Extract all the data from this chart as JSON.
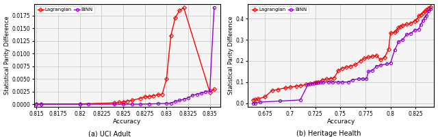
{
  "left": {
    "binn_x": [
      0.815,
      0.8155,
      0.82,
      0.821,
      0.824,
      0.825,
      0.826,
      0.827,
      0.828,
      0.829,
      0.83,
      0.8305,
      0.831,
      0.8315,
      0.832,
      0.8325,
      0.833,
      0.8335,
      0.834,
      0.8345,
      0.835,
      0.8355
    ],
    "binn_y": [
      5e-05,
      5e-05,
      5e-05,
      5e-05,
      5e-05,
      5e-05,
      5e-05,
      5e-05,
      0.0001,
      0.00015,
      0.0002,
      0.00025,
      0.0006,
      0.0008,
      0.001,
      0.0013,
      0.0018,
      0.002,
      0.0022,
      0.0025,
      0.0027,
      0.019
    ],
    "lagr_x": [
      0.815,
      0.8155,
      0.82,
      0.824,
      0.8245,
      0.825,
      0.8255,
      0.826,
      0.827,
      0.8275,
      0.828,
      0.8285,
      0.829,
      0.8295,
      0.83,
      0.8305,
      0.831,
      0.8315,
      0.832,
      0.835,
      0.8355
    ],
    "lagr_y": [
      0.0001,
      0.0001,
      0.0001,
      0.0003,
      0.0004,
      0.0005,
      0.00065,
      0.0008,
      0.0012,
      0.0015,
      0.0016,
      0.0017,
      0.0019,
      0.002,
      0.005,
      0.0135,
      0.017,
      0.0185,
      0.019,
      0.0024,
      0.003
    ],
    "xlabel": "Accuracy",
    "ylabel": "Statistical Parity Difference",
    "title": "(a) UCI Adult",
    "xlim": [
      0.8147,
      0.8362
    ],
    "ylim": [
      -0.0005,
      0.0198
    ],
    "xticks": [
      0.815,
      0.8175,
      0.82,
      0.8225,
      0.825,
      0.8275,
      0.83,
      0.8325,
      0.835
    ],
    "yticks": [
      0.0,
      0.0025,
      0.005,
      0.0075,
      0.01,
      0.0125,
      0.015,
      0.0175
    ]
  },
  "right": {
    "binn_x": [
      0.663,
      0.665,
      0.67,
      0.69,
      0.71,
      0.718,
      0.722,
      0.726,
      0.73,
      0.733,
      0.738,
      0.742,
      0.748,
      0.752,
      0.758,
      0.762,
      0.768,
      0.772,
      0.776,
      0.778,
      0.782,
      0.786,
      0.79,
      0.796,
      0.8,
      0.804,
      0.808,
      0.812,
      0.816,
      0.82,
      0.824,
      0.828,
      0.83,
      0.832,
      0.834,
      0.836,
      0.838,
      0.84
    ],
    "binn_y": [
      0.0,
      0.0,
      0.005,
      0.01,
      0.015,
      0.09,
      0.093,
      0.095,
      0.098,
      0.1,
      0.1,
      0.1,
      0.1,
      0.1,
      0.1,
      0.11,
      0.115,
      0.115,
      0.115,
      0.15,
      0.155,
      0.175,
      0.18,
      0.185,
      0.19,
      0.25,
      0.29,
      0.3,
      0.325,
      0.33,
      0.345,
      0.35,
      0.37,
      0.39,
      0.405,
      0.415,
      0.435,
      0.445
    ],
    "lagr_x": [
      0.663,
      0.665,
      0.668,
      0.675,
      0.682,
      0.688,
      0.695,
      0.7,
      0.706,
      0.71,
      0.716,
      0.72,
      0.724,
      0.726,
      0.728,
      0.732,
      0.736,
      0.74,
      0.744,
      0.748,
      0.752,
      0.756,
      0.76,
      0.765,
      0.77,
      0.774,
      0.778,
      0.782,
      0.786,
      0.79,
      0.794,
      0.798,
      0.8,
      0.804,
      0.806,
      0.808,
      0.81,
      0.812,
      0.816,
      0.82,
      0.824,
      0.826,
      0.828,
      0.83,
      0.832,
      0.834,
      0.836,
      0.838,
      0.84
    ],
    "lagr_y": [
      0.015,
      0.017,
      0.02,
      0.03,
      0.06,
      0.065,
      0.072,
      0.076,
      0.08,
      0.083,
      0.088,
      0.092,
      0.096,
      0.098,
      0.1,
      0.11,
      0.114,
      0.116,
      0.12,
      0.155,
      0.165,
      0.17,
      0.175,
      0.182,
      0.2,
      0.212,
      0.218,
      0.222,
      0.226,
      0.205,
      0.215,
      0.255,
      0.332,
      0.335,
      0.342,
      0.358,
      0.362,
      0.368,
      0.373,
      0.378,
      0.388,
      0.395,
      0.412,
      0.418,
      0.425,
      0.435,
      0.442,
      0.45,
      0.457
    ],
    "xlabel": "Accuracy",
    "ylabel": "Statistical Parity Difference",
    "title": "(b) Heritage Health",
    "xlim": [
      0.658,
      0.8435
    ],
    "ylim": [
      -0.018,
      0.47
    ],
    "xticks": [
      0.675,
      0.7,
      0.725,
      0.75,
      0.775,
      0.8,
      0.825
    ],
    "yticks": [
      0.0,
      0.1,
      0.2,
      0.3,
      0.4
    ]
  },
  "binn_color": "#9400D3",
  "lagr_color": "#ff0000",
  "binn_label": "BiNN",
  "lagr_label": "Lagrangian",
  "marker_binn": "o",
  "marker_lagr": "D",
  "markersize": 3.0,
  "linewidth": 1.0,
  "grid_color": "#cccccc",
  "bg_color": "#f5f5f5"
}
